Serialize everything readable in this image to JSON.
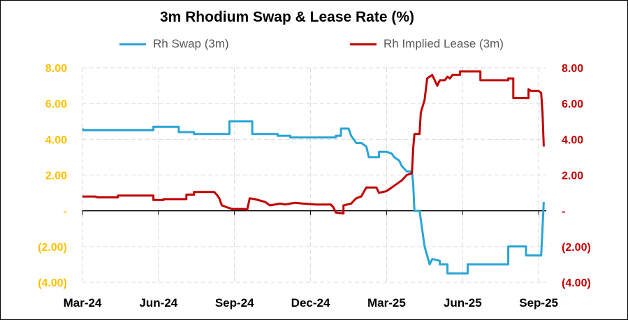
{
  "chart_data": {
    "type": "line",
    "title": "3m Rhodium Swap & Lease Rate (%)",
    "xlabel": "",
    "ylabel": "",
    "x_tick_labels": [
      "Mar-24",
      "Jun-24",
      "Sep-24",
      "Dec-24",
      "Mar-25",
      "Jun-25",
      "Sep-25"
    ],
    "xlim": [
      0,
      18.3
    ],
    "y_left": {
      "lim": [
        -4,
        8
      ],
      "tick_labels": [
        "8.00",
        "6.00",
        "4.00",
        "2.00",
        "-",
        "(2.00)",
        "(4.00)"
      ],
      "color": "#FFC000"
    },
    "y_right": {
      "lim": [
        -4,
        8
      ],
      "tick_labels": [
        "8.00",
        "6.00",
        "4.00",
        "2.00",
        "-",
        "(2.00)",
        "(4.00)"
      ],
      "color": "#C00000"
    },
    "grid": true,
    "legend_position": "top",
    "series": [
      {
        "name": "Rh Swap (3m)",
        "color": "#2AA4D6",
        "axis": "left",
        "points": [
          [
            0.0,
            4.6
          ],
          [
            0.05,
            4.5
          ],
          [
            2.8,
            4.5
          ],
          [
            2.8,
            4.7
          ],
          [
            3.8,
            4.7
          ],
          [
            3.8,
            4.4
          ],
          [
            4.4,
            4.4
          ],
          [
            4.4,
            4.3
          ],
          [
            5.8,
            4.3
          ],
          [
            5.8,
            5.0
          ],
          [
            6.7,
            5.0
          ],
          [
            6.7,
            4.3
          ],
          [
            7.7,
            4.3
          ],
          [
            7.7,
            4.2
          ],
          [
            8.2,
            4.2
          ],
          [
            8.2,
            4.1
          ],
          [
            10.0,
            4.1
          ],
          [
            10.0,
            4.2
          ],
          [
            10.2,
            4.2
          ],
          [
            10.2,
            4.6
          ],
          [
            10.5,
            4.6
          ],
          [
            10.6,
            4.2
          ],
          [
            10.8,
            3.8
          ],
          [
            11.0,
            3.8
          ],
          [
            11.2,
            3.6
          ],
          [
            11.3,
            3.0
          ],
          [
            11.7,
            3.0
          ],
          [
            11.7,
            3.3
          ],
          [
            12.0,
            3.3
          ],
          [
            12.2,
            3.2
          ],
          [
            12.3,
            3.0
          ],
          [
            12.5,
            2.8
          ],
          [
            12.6,
            2.5
          ],
          [
            12.8,
            2.2
          ],
          [
            13.0,
            2.2
          ],
          [
            13.05,
            1.5
          ],
          [
            13.1,
            0.0
          ],
          [
            13.3,
            0.0
          ],
          [
            13.4,
            -1.0
          ],
          [
            13.5,
            -2.0
          ],
          [
            13.7,
            -3.0
          ],
          [
            13.8,
            -2.7
          ],
          [
            14.1,
            -2.8
          ],
          [
            14.1,
            -3.0
          ],
          [
            14.4,
            -3.0
          ],
          [
            14.4,
            -3.5
          ],
          [
            15.2,
            -3.5
          ],
          [
            15.2,
            -3.0
          ],
          [
            16.8,
            -3.0
          ],
          [
            16.8,
            -2.0
          ],
          [
            17.5,
            -2.0
          ],
          [
            17.5,
            -2.5
          ],
          [
            18.1,
            -2.5
          ],
          [
            18.15,
            -1.0
          ],
          [
            18.2,
            0.5
          ]
        ]
      },
      {
        "name": "Rh Implied Lease (3m)",
        "color": "#C00000",
        "axis": "right",
        "points": [
          [
            0.0,
            0.8
          ],
          [
            0.5,
            0.8
          ],
          [
            0.6,
            0.75
          ],
          [
            1.4,
            0.75
          ],
          [
            1.4,
            0.85
          ],
          [
            2.8,
            0.85
          ],
          [
            2.8,
            0.6
          ],
          [
            3.2,
            0.6
          ],
          [
            3.2,
            0.65
          ],
          [
            4.1,
            0.65
          ],
          [
            4.1,
            0.9
          ],
          [
            4.4,
            0.9
          ],
          [
            4.4,
            1.05
          ],
          [
            5.2,
            1.05
          ],
          [
            5.3,
            0.9
          ],
          [
            5.4,
            0.7
          ],
          [
            5.5,
            0.3
          ],
          [
            5.7,
            0.2
          ],
          [
            5.9,
            0.1
          ],
          [
            6.4,
            0.1
          ],
          [
            6.5,
            0.05
          ],
          [
            6.6,
            0.7
          ],
          [
            6.8,
            0.65
          ],
          [
            7.2,
            0.5
          ],
          [
            7.3,
            0.4
          ],
          [
            7.4,
            0.3
          ],
          [
            7.8,
            0.4
          ],
          [
            8.0,
            0.35
          ],
          [
            8.2,
            0.4
          ],
          [
            8.4,
            0.45
          ],
          [
            8.7,
            0.4
          ],
          [
            9.2,
            0.35
          ],
          [
            9.8,
            0.35
          ],
          [
            9.9,
            0.2
          ],
          [
            10.0,
            -0.1
          ],
          [
            10.3,
            -0.15
          ],
          [
            10.3,
            0.3
          ],
          [
            10.6,
            0.4
          ],
          [
            10.8,
            0.7
          ],
          [
            11.0,
            0.8
          ],
          [
            11.2,
            1.3
          ],
          [
            11.6,
            1.3
          ],
          [
            11.7,
            1.0
          ],
          [
            12.0,
            1.1
          ],
          [
            12.2,
            1.3
          ],
          [
            12.4,
            1.5
          ],
          [
            12.6,
            1.7
          ],
          [
            12.8,
            2.0
          ],
          [
            13.0,
            2.1
          ],
          [
            13.05,
            3.5
          ],
          [
            13.1,
            4.3
          ],
          [
            13.3,
            4.3
          ],
          [
            13.35,
            5.5
          ],
          [
            13.5,
            6.2
          ],
          [
            13.6,
            7.4
          ],
          [
            13.8,
            7.6
          ],
          [
            14.0,
            7.0
          ],
          [
            14.1,
            7.3
          ],
          [
            14.3,
            7.3
          ],
          [
            14.4,
            7.5
          ],
          [
            14.5,
            7.4
          ],
          [
            14.6,
            7.6
          ],
          [
            14.9,
            7.6
          ],
          [
            14.9,
            7.8
          ],
          [
            15.7,
            7.8
          ],
          [
            15.7,
            7.3
          ],
          [
            16.8,
            7.3
          ],
          [
            16.8,
            7.4
          ],
          [
            17.0,
            7.4
          ],
          [
            17.0,
            6.3
          ],
          [
            17.6,
            6.3
          ],
          [
            17.6,
            6.8
          ],
          [
            17.7,
            6.7
          ],
          [
            18.0,
            6.7
          ],
          [
            18.1,
            6.6
          ],
          [
            18.15,
            5.5
          ],
          [
            18.2,
            3.6
          ]
        ]
      }
    ]
  }
}
